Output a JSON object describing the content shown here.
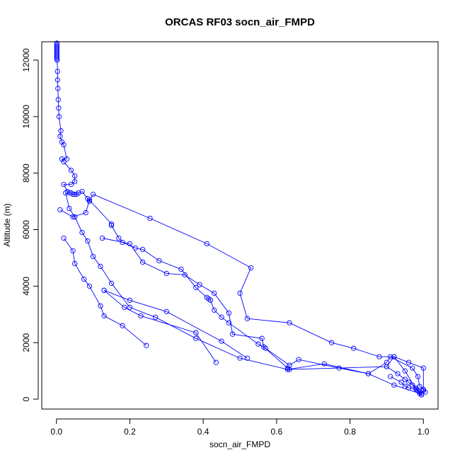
{
  "chart_data": {
    "type": "line",
    "title": "ORCAS RF03 socn_air_FMPD",
    "xlabel": "socn_air_FMPD",
    "ylabel": "Altitude (m)",
    "xlim": [
      -0.04,
      1.04
    ],
    "ylim": [
      -350,
      12650
    ],
    "xticks": [
      0.0,
      0.2,
      0.4,
      0.6,
      0.8,
      1.0
    ],
    "xtick_labels": [
      "0.0",
      "0.2",
      "0.4",
      "0.6",
      "0.8",
      "1.0"
    ],
    "yticks": [
      0,
      2000,
      4000,
      6000,
      8000,
      10000,
      12000
    ],
    "ytick_labels": [
      "0",
      "2000",
      "4000",
      "6000",
      "8000",
      "10000",
      "12000"
    ],
    "grid": false,
    "marker": "open-circle",
    "series_color": "#0000ff",
    "series": [
      {
        "points": [
          [
            0.001,
            12600
          ],
          [
            0.001,
            12550
          ],
          [
            0.001,
            12500
          ],
          [
            0.001,
            12450
          ],
          [
            0.001,
            12400
          ],
          [
            0.001,
            12350
          ],
          [
            0.001,
            12300
          ],
          [
            0.001,
            12250
          ],
          [
            0.001,
            12200
          ],
          [
            0.001,
            12150
          ],
          [
            0.001,
            12100
          ],
          [
            0.001,
            12050
          ],
          [
            0.002,
            12000
          ],
          [
            0.003,
            11600
          ],
          [
            0.003,
            11300
          ],
          [
            0.004,
            11000
          ],
          [
            0.005,
            10600
          ],
          [
            0.006,
            10300
          ],
          [
            0.007,
            10000
          ],
          [
            0.012,
            9500
          ],
          [
            0.01,
            9300
          ],
          [
            0.015,
            9100
          ],
          [
            0.02,
            9000
          ],
          [
            0.028,
            8500
          ],
          [
            0.015,
            8500
          ],
          [
            0.02,
            8400
          ],
          [
            0.04,
            8100
          ],
          [
            0.05,
            7900
          ],
          [
            0.05,
            7700
          ],
          [
            0.04,
            7600
          ],
          [
            0.02,
            7600
          ],
          [
            0.03,
            7350
          ],
          [
            0.035,
            7300
          ],
          [
            0.04,
            7300
          ],
          [
            0.045,
            7250
          ],
          [
            0.05,
            7250
          ],
          [
            0.055,
            7250
          ],
          [
            0.06,
            7300
          ],
          [
            0.07,
            7350
          ],
          [
            0.085,
            7100
          ],
          [
            0.09,
            7000
          ],
          [
            0.1,
            7250
          ],
          [
            0.255,
            6400
          ],
          [
            0.41,
            5500
          ],
          [
            0.53,
            4650
          ],
          [
            0.5,
            3750
          ],
          [
            0.52,
            2850
          ],
          [
            0.635,
            2700
          ],
          [
            0.75,
            2000
          ],
          [
            0.81,
            1800
          ],
          [
            0.88,
            1500
          ],
          [
            0.92,
            1500
          ],
          [
            0.96,
            1300
          ],
          [
            1.0,
            1100
          ],
          [
            1.0,
            300
          ],
          [
            0.99,
            200
          ],
          [
            0.92,
            500
          ],
          [
            0.85,
            900
          ],
          [
            0.73,
            1250
          ],
          [
            0.63,
            1050
          ],
          [
            0.5,
            1450
          ],
          [
            0.38,
            2150
          ],
          [
            0.27,
            2900
          ],
          [
            0.2,
            3250
          ],
          [
            0.15,
            4100
          ],
          [
            0.12,
            4700
          ],
          [
            0.1,
            5050
          ],
          [
            0.085,
            5600
          ],
          [
            0.07,
            5900
          ],
          [
            0.05,
            6450
          ],
          [
            0.035,
            6750
          ],
          [
            0.025,
            7300
          ]
        ]
      },
      {
        "points": [
          [
            0.02,
            5700
          ],
          [
            0.045,
            5250
          ],
          [
            0.05,
            4800
          ],
          [
            0.075,
            4250
          ],
          [
            0.09,
            4000
          ],
          [
            0.12,
            3300
          ],
          [
            0.13,
            2950
          ],
          [
            0.18,
            2600
          ],
          [
            0.245,
            1900
          ]
        ]
      },
      {
        "points": [
          [
            0.01,
            6700
          ],
          [
            0.045,
            6450
          ],
          [
            0.08,
            6600
          ],
          [
            0.09,
            7050
          ],
          [
            0.15,
            6200
          ],
          [
            0.15,
            6150
          ],
          [
            0.17,
            5700
          ],
          [
            0.18,
            5550
          ],
          [
            0.215,
            5350
          ],
          [
            0.235,
            5300
          ],
          [
            0.28,
            4900
          ],
          [
            0.34,
            4600
          ],
          [
            0.38,
            3950
          ],
          [
            0.41,
            3600
          ],
          [
            0.415,
            3550
          ],
          [
            0.42,
            3500
          ],
          [
            0.43,
            3150
          ],
          [
            0.45,
            2900
          ],
          [
            0.47,
            2700
          ],
          [
            0.55,
            1950
          ],
          [
            0.57,
            1800
          ],
          [
            0.635,
            1200
          ],
          [
            0.66,
            1400
          ],
          [
            0.77,
            1100
          ],
          [
            0.85,
            900
          ],
          [
            0.9,
            1300
          ],
          [
            0.91,
            1500
          ],
          [
            0.97,
            1100
          ],
          [
            0.985,
            800
          ],
          [
            0.99,
            450
          ],
          [
            1.0,
            350
          ],
          [
            1.005,
            250
          ]
        ]
      },
      {
        "points": [
          [
            0.125,
            5700
          ],
          [
            0.2,
            5500
          ],
          [
            0.235,
            4850
          ],
          [
            0.3,
            4450
          ],
          [
            0.35,
            4400
          ],
          [
            0.39,
            4050
          ],
          [
            0.43,
            3750
          ],
          [
            0.47,
            3050
          ],
          [
            0.48,
            2300
          ],
          [
            0.56,
            2150
          ],
          [
            0.565,
            1850
          ],
          [
            0.63,
            1100
          ],
          [
            0.635,
            1050
          ],
          [
            0.9,
            1150
          ],
          [
            0.92,
            1500
          ],
          [
            0.95,
            1000
          ],
          [
            0.98,
            350
          ],
          [
            0.995,
            150
          ]
        ]
      },
      {
        "points": [
          [
            0.13,
            3850
          ],
          [
            0.185,
            3250
          ],
          [
            0.23,
            2950
          ],
          [
            0.38,
            2350
          ],
          [
            0.435,
            1300
          ]
        ]
      },
      {
        "points": [
          [
            0.13,
            3850
          ],
          [
            0.2,
            3500
          ],
          [
            0.3,
            3100
          ],
          [
            0.45,
            2050
          ],
          [
            0.52,
            1450
          ]
        ]
      },
      {
        "points": [
          [
            0.9,
            1150
          ],
          [
            0.93,
            900
          ],
          [
            0.95,
            700
          ],
          [
            0.96,
            600
          ],
          [
            0.97,
            500
          ],
          [
            0.98,
            400
          ],
          [
            0.985,
            300
          ],
          [
            0.99,
            250
          ]
        ]
      },
      {
        "points": [
          [
            0.91,
            800
          ],
          [
            0.94,
            600
          ],
          [
            0.95,
            450
          ],
          [
            0.96,
            400
          ],
          [
            0.98,
            350
          ],
          [
            0.995,
            200
          ]
        ]
      }
    ]
  }
}
